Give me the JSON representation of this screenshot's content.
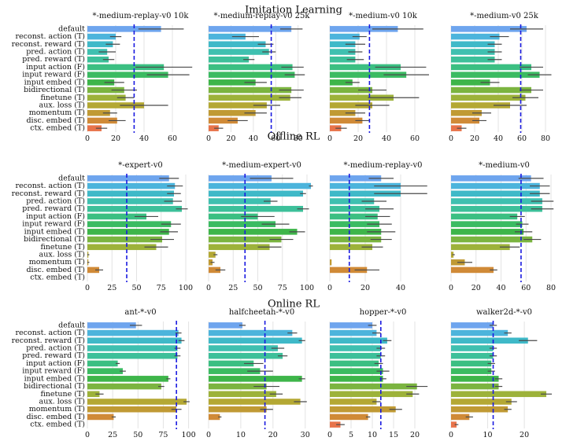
{
  "chart_data": {
    "type": "bar",
    "orientation": "horizontal",
    "categories": [
      "default",
      "reconst. action (T)",
      "reconst. reward (T)",
      "pred. action (T)",
      "pred. reward (T)",
      "input action (F)",
      "input reward (F)",
      "input embed (T)",
      "bidirectional (T)",
      "finetune (T)",
      "aux. loss (T)",
      "momentum (T)",
      "disc. embed (T)",
      "ctx. embed (T)"
    ],
    "colors": [
      "#6ea5ee",
      "#4cb4dc",
      "#3fb9c8",
      "#3fc0b0",
      "#3dc09a",
      "#3bbf82",
      "#3bbb62",
      "#3eb54a",
      "#7bb440",
      "#9db23a",
      "#b4a834",
      "#c09a34",
      "#d08a37",
      "#e8734a"
    ],
    "sections": [
      {
        "title": "Imitation Learning",
        "panels": [
          {
            "title": "*-medium-replay-v0 10k",
            "xlim": [
              0,
              75
            ],
            "xticks": [
              0,
              20,
              40,
              60
            ],
            "ref": 33,
            "values": [
              52,
              20,
              18,
              14,
              15,
              54,
              57,
              19,
              26,
              27,
              40,
              16,
              21,
              10
            ],
            "errors": [
              16,
              4,
              5,
              6,
              4,
              20,
              15,
              7,
              9,
              6,
              17,
              5,
              6,
              4
            ]
          },
          {
            "title": "*-medium-replay-v0 25k",
            "xlim": [
              0,
              95
            ],
            "xticks": [
              0,
              20,
              40,
              60,
              80
            ],
            "ref": 56,
            "values": [
              74,
              33,
              51,
              54,
              36,
              75,
              77,
              42,
              74,
              73,
              52,
              42,
              26,
              9
            ],
            "errors": [
              10,
              12,
              7,
              6,
              5,
              10,
              9,
              10,
              11,
              10,
              12,
              10,
              9,
              4
            ]
          },
          {
            "title": "*-medium-v0 10k",
            "xlim": [
              0,
              75
            ],
            "xticks": [
              0,
              20,
              40,
              60
            ],
            "ref": 28,
            "values": [
              48,
              21,
              18,
              18,
              18,
              50,
              54,
              16,
              30,
              45,
              30,
              18,
              23,
              8
            ],
            "errors": [
              18,
              5,
              7,
              5,
              6,
              18,
              16,
              5,
              10,
              18,
              12,
              7,
              5,
              4
            ]
          },
          {
            "title": "*-medium-v0 25k",
            "xlim": [
              0,
              90
            ],
            "xticks": [
              0,
              20,
              40,
              60,
              80
            ],
            "ref": 59,
            "values": [
              64,
              41,
              37,
              37,
              37,
              68,
              75,
              33,
              68,
              63,
              50,
              26,
              24,
              9
            ],
            "errors": [
              14,
              8,
              6,
              6,
              6,
              10,
              10,
              8,
              10,
              11,
              14,
              8,
              6,
              4
            ]
          }
        ]
      },
      {
        "title": "Offline RL",
        "panels": [
          {
            "title": "*-expert-v0",
            "xlim": [
              0,
              108
            ],
            "xticks": [
              0,
              25,
              50,
              75,
              100
            ],
            "ref": 40,
            "values": [
              83,
              89,
              88,
              87,
              96,
              60,
              85,
              83,
              76,
              70,
              1,
              1,
              12,
              0
            ],
            "errors": [
              10,
              8,
              7,
              9,
              6,
              12,
              10,
              9,
              12,
              12,
              1,
              1,
              4,
              0
            ]
          },
          {
            "title": "*-medium-expert-v0",
            "xlim": [
              0,
              108
            ],
            "xticks": [
              0,
              25,
              50,
              75,
              100
            ],
            "ref": 37,
            "values": [
              64,
              104,
              96,
              63,
              96,
              50,
              68,
              90,
              74,
              62,
              7,
              4,
              12,
              0
            ],
            "errors": [
              22,
              2,
              3,
              7,
              6,
              17,
              14,
              8,
              12,
              12,
              2,
              2,
              5,
              0
            ]
          },
          {
            "title": "*-medium-replay-v0",
            "xlim": [
              0,
              60
            ],
            "xticks": [
              0,
              20,
              40
            ],
            "ref": 11,
            "values": [
              29,
              40,
              40,
              25,
              28,
              27,
              28,
              29,
              29,
              24,
              0,
              1,
              21,
              0
            ],
            "errors": [
              7,
              15,
              15,
              7,
              8,
              7,
              7,
              8,
              6,
              6,
              0,
              0,
              7,
              0
            ]
          },
          {
            "title": "*-medium-v0",
            "xlim": [
              0,
              85
            ],
            "xticks": [
              0,
              20,
              40,
              60,
              80
            ],
            "ref": 56,
            "values": [
              64,
              71,
              71,
              73,
              73,
              53,
              57,
              58,
              65,
              47,
              2,
              11,
              34,
              0
            ],
            "errors": [
              10,
              8,
              8,
              9,
              9,
              6,
              5,
              7,
              7,
              8,
              1,
              6,
              3,
              0
            ]
          }
        ]
      },
      {
        "title": "Online RL",
        "panels": [
          {
            "title": "ant-*-v0",
            "xlim": [
              0,
              105
            ],
            "xticks": [
              0,
              25,
              50,
              75,
              100
            ],
            "ref": 88,
            "values": [
              48,
              90,
              93,
              89,
              89,
              30,
              35,
              80,
              73,
              12,
              98,
              88,
              26,
              0
            ],
            "errors": [
              6,
              3,
              3,
              3,
              3,
              2,
              3,
              2,
              3,
              4,
              3,
              5,
              2,
              0
            ]
          },
          {
            "title": "halfcheetah-*-v0",
            "xlim": [
              0,
              33
            ],
            "xticks": [
              0,
              10,
              20,
              30
            ],
            "ref": 17.5,
            "values": [
              10.5,
              26,
              29,
              21.5,
              23,
              14,
              16,
              29,
              18,
              21,
              28.5,
              18,
              3.5,
              0
            ],
            "errors": [
              1,
              1.5,
              1,
              2,
              1.5,
              3,
              4,
              1,
              4,
              2,
              2,
              2,
              0.5,
              0
            ]
          },
          {
            "title": "hopper-*-v0",
            "xlim": [
              0,
              25
            ],
            "xticks": [
              0,
              5,
              10,
              15,
              20
            ],
            "ref": 12,
            "values": [
              10,
              11,
              13.5,
              12,
              12,
              11.5,
              12.5,
              12.5,
              20.5,
              19.5,
              11,
              15.5,
              9,
              2.5
            ],
            "errors": [
              1,
              1,
              1,
              1,
              1,
              1,
              1.5,
              0.8,
              2.5,
              1.5,
              1,
              1.5,
              0.5,
              1
            ]
          },
          {
            "title": "walker2d-*-v0",
            "xlim": [
              0,
              29
            ],
            "xticks": [
              0,
              10,
              20
            ],
            "ref": 11.5,
            "values": [
              11.5,
              15.5,
              21,
              11.5,
              11.5,
              11,
              11,
              13,
              13,
              26,
              16.5,
              15.5,
              5,
              1.5
            ],
            "errors": [
              1,
              1,
              2.5,
              1,
              1,
              1,
              1,
              1,
              1,
              1.5,
              1.5,
              1,
              1,
              0.5
            ]
          }
        ]
      }
    ]
  }
}
